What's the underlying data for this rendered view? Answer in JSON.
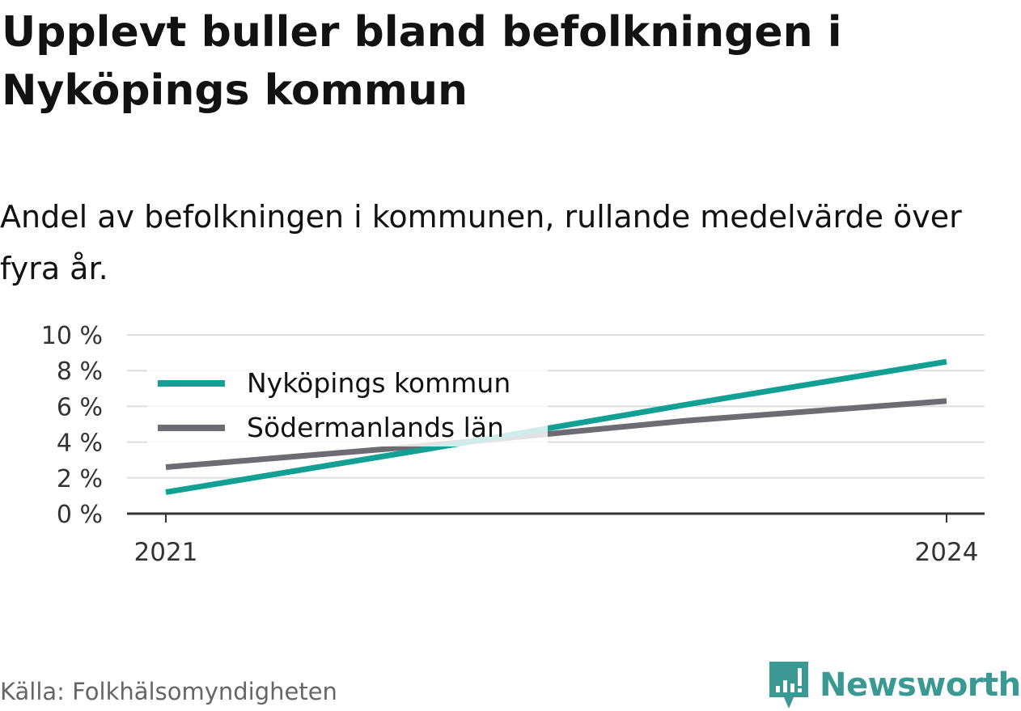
{
  "header": {
    "title": "Upplevt buller bland befolkningen i Nyköpings kommun",
    "subtitle": "Andel av befolkningen i kommunen, rullande medelvärde över fyra år."
  },
  "footer": {
    "source": "Källa: Folkhälsomyndigheten",
    "brand": "Newsworthy",
    "brand_icon": "newsworthy-logo-icon"
  },
  "colors": {
    "kommun": "#12a095",
    "lan": "#6e6c73",
    "grid": "#dddddd",
    "axis": "#333333",
    "brand": "#3a9a93"
  },
  "chart_data": {
    "type": "line",
    "x": [
      2021,
      2022,
      2023,
      2024
    ],
    "x_ticks": [
      "2021",
      "2024"
    ],
    "y_ticks": [
      "0 %",
      "2 %",
      "4 %",
      "6 %",
      "8 %",
      "10 %"
    ],
    "ylim": [
      0,
      10
    ],
    "series": [
      {
        "name": "Nyköpings kommun",
        "values": [
          1.2,
          3.6,
          6.1,
          8.5
        ]
      },
      {
        "name": "Södermanlands län",
        "values": [
          2.6,
          3.8,
          5.2,
          6.3
        ]
      }
    ],
    "legend": {
      "placement": "top-left"
    },
    "grid": true
  }
}
